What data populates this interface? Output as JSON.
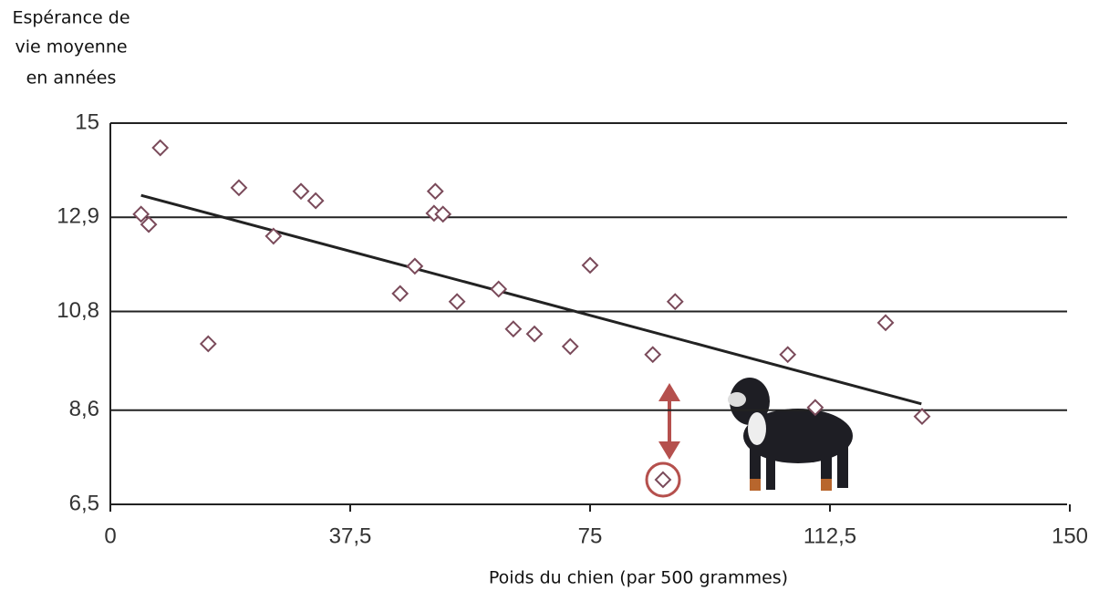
{
  "chart_data": {
    "type": "scatter",
    "ylabel": [
      "Espérance de",
      "vie moyenne",
      "en années"
    ],
    "xlabel": "Poids du chien (par 500 grammes)",
    "xlim": [
      0,
      150
    ],
    "xticks": [
      0,
      {
        "value": 37.5,
        "label": "37,5"
      },
      75,
      {
        "value": 112.5,
        "label": "112,5"
      },
      150
    ],
    "ylim": [
      6.5,
      15
    ],
    "yticks": [
      {
        "value": 6.5,
        "label": "6,5"
      },
      {
        "value": 8.6,
        "label": "8,6"
      },
      {
        "value": 10.8,
        "label": "10,8"
      },
      {
        "value": 12.9,
        "label": "12,9"
      },
      15
    ],
    "grid": true,
    "color": "#7a4a5a",
    "x": [
      4.8,
      6.0,
      7.8,
      15.3,
      20.1,
      25.5,
      29.8,
      32.1,
      45.3,
      47.6,
      50.8,
      50.6,
      52.0,
      54.2,
      60.7,
      63.0,
      66.3,
      71.9,
      75.0,
      84.8,
      86.4,
      88.3,
      105.9,
      110.2,
      121.2,
      126.9
    ],
    "values": [
      12.97,
      12.74,
      14.45,
      10.08,
      13.56,
      12.48,
      13.48,
      13.27,
      11.2,
      11.81,
      13.48,
      12.99,
      12.97,
      11.02,
      11.3,
      10.41,
      10.3,
      10.02,
      11.83,
      9.84,
      7.05,
      11.02,
      9.84,
      8.66,
      10.55,
      8.46
    ],
    "trendline": {
      "color": "#222222",
      "x": [
        4.8,
        126.8
      ],
      "values": [
        13.39,
        8.74
      ]
    }
  }
}
